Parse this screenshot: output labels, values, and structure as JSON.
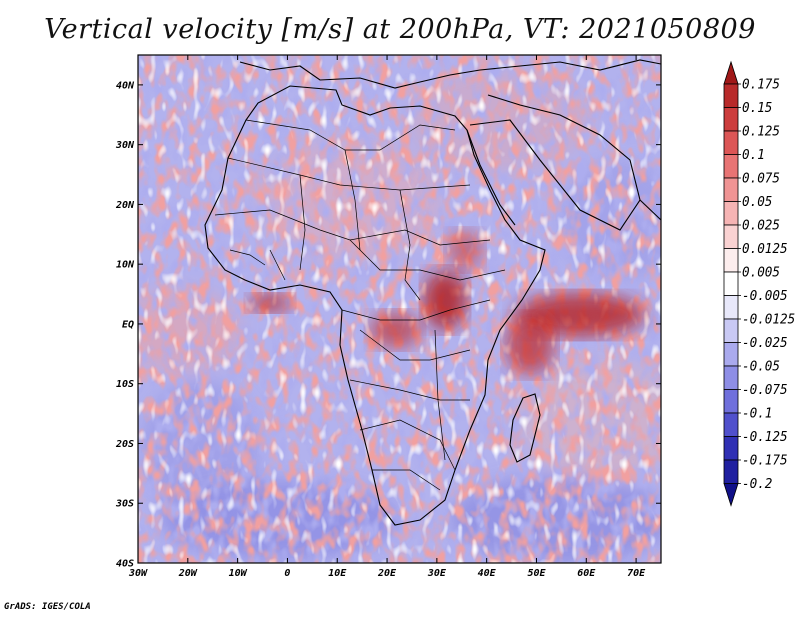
{
  "title": "Vertical velocity [m/s] at 200hPa, VT: 2021050809",
  "footer": "GrADS: IGES/COLA",
  "map": {
    "lon_labels": [
      "30W",
      "20W",
      "10W",
      "0",
      "10E",
      "20E",
      "30E",
      "40E",
      "50E",
      "60E",
      "70E"
    ],
    "lat_labels": [
      "40N",
      "30N",
      "20N",
      "10N",
      "EQ",
      "10S",
      "20S",
      "30S",
      "40S"
    ],
    "lon_range": [
      -30,
      75
    ],
    "lat_range": [
      -40,
      45
    ]
  },
  "colorbar": {
    "labels": [
      "0.175",
      "0.15",
      "0.125",
      "0.1",
      "0.075",
      "0.05",
      "0.025",
      "0.0125",
      "0.005",
      "-0.005",
      "-0.0125",
      "-0.025",
      "-0.05",
      "-0.075",
      "-0.1",
      "-0.125",
      "-0.175",
      "-0.2"
    ],
    "colors": [
      "#a01818",
      "#b82a2a",
      "#cc3d3d",
      "#dc5656",
      "#e87474",
      "#f09494",
      "#f6b4b4",
      "#fad2d2",
      "#fdeeee",
      "#ffffff",
      "#e8e8fa",
      "#c9c9f4",
      "#aaaaee",
      "#8e8ee6",
      "#7070dc",
      "#5050cc",
      "#3030b4",
      "#2020a0",
      "#101088"
    ]
  }
}
